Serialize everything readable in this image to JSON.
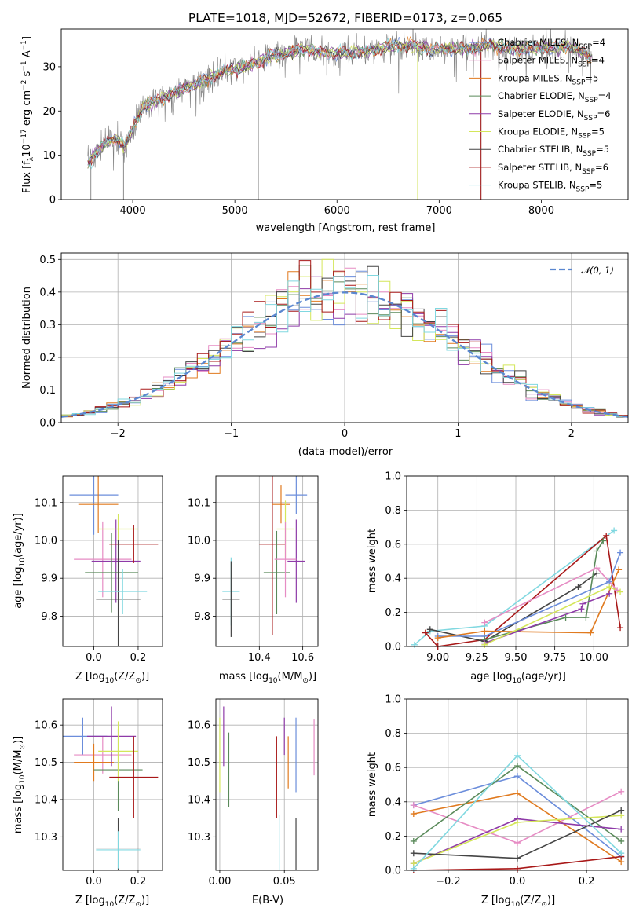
{
  "figure_title": "PLATE=1018, MJD=52672, FIBERID=0173, z=0.065",
  "colors": {
    "chabrier_miles": "#6b8ddb",
    "salpeter_miles": "#e68cc4",
    "kroupa_miles": "#e07a1f",
    "chabrier_elodie": "#5a8a5a",
    "salpeter_elodie": "#8e3aa8",
    "kroupa_elodie": "#d4e65a",
    "chabrier_stelib": "#444444",
    "salpeter_stelib": "#a81818",
    "kroupa_stelib": "#80d8e0"
  },
  "chart_data": [
    {
      "id": "spectrum",
      "type": "line",
      "title": "PLATE=1018, MJD=52672, FIBERID=0173, z=0.065",
      "xlabel": "wavelength [Angstrom, rest frame]",
      "ylabel": "Flux [f",
      "ylabel_sub": "λ",
      "ylabel_rest": "10",
      "ylabel_sup1": "−17",
      "ylabel_rest2": " erg cm",
      "ylabel_sup2": "−2",
      "ylabel_rest3": " s",
      "ylabel_sup3": "−1",
      "ylabel_rest4": " A",
      "ylabel_sup4": "−1",
      "ylabel_end": "]",
      "xlim": [
        3300,
        8850
      ],
      "ylim": [
        0,
        38.5
      ],
      "xticks": [
        4000,
        5000,
        6000,
        7000,
        8000
      ],
      "yticks": [
        0,
        10,
        20,
        30
      ],
      "legend_position": "upper-right",
      "legend": [
        {
          "base": "Chabrier MILES, N",
          "sub": "SSP",
          "end": "=4",
          "color": "#6b8ddb"
        },
        {
          "base": "Salpeter MILES, N",
          "sub": "SSP",
          "end": "=4",
          "color": "#e68cc4"
        },
        {
          "base": "Kroupa MILES, N",
          "sub": "SSP",
          "end": "=5",
          "color": "#e07a1f"
        },
        {
          "base": "Chabrier ELODIE, N",
          "sub": "SSP",
          "end": "=4",
          "color": "#5a8a5a"
        },
        {
          "base": "Salpeter ELODIE, N",
          "sub": "SSP",
          "end": "=6",
          "color": "#8e3aa8"
        },
        {
          "base": "Kroupa ELODIE, N",
          "sub": "SSP",
          "end": "=5",
          "color": "#d4e65a"
        },
        {
          "base": "Chabrier STELIB, N",
          "sub": "SSP",
          "end": "=5",
          "color": "#444444"
        },
        {
          "base": "Salpeter STELIB, N",
          "sub": "SSP",
          "end": "=6",
          "color": "#a81818"
        },
        {
          "base": "Kroupa STELIB, N",
          "sub": "SSP",
          "end": "=5",
          "color": "#80d8e0"
        }
      ],
      "continuum": [
        [
          3560,
          8
        ],
        [
          3650,
          11
        ],
        [
          3750,
          13
        ],
        [
          3850,
          14
        ],
        [
          3920,
          12
        ],
        [
          4000,
          16
        ],
        [
          4100,
          21
        ],
        [
          4300,
          23
        ],
        [
          4500,
          25
        ],
        [
          4700,
          27
        ],
        [
          4900,
          29
        ],
        [
          5100,
          30
        ],
        [
          5300,
          32
        ],
        [
          5500,
          33
        ],
        [
          5700,
          34
        ],
        [
          5900,
          33
        ],
        [
          6100,
          33
        ],
        [
          6300,
          33.5
        ],
        [
          6500,
          34.5
        ],
        [
          6700,
          35
        ],
        [
          6900,
          34
        ],
        [
          7100,
          34
        ],
        [
          7300,
          34
        ],
        [
          7500,
          35
        ],
        [
          7700,
          34
        ],
        [
          7900,
          34
        ],
        [
          8100,
          34.5
        ],
        [
          8300,
          34.5
        ],
        [
          8500,
          32
        ]
      ]
    },
    {
      "id": "residuals",
      "type": "histogram",
      "xlabel": "(data-model)/error",
      "ylabel": "Normed distribution",
      "xlim": [
        -2.5,
        2.5
      ],
      "ylim": [
        0,
        0.52
      ],
      "xticks": [
        -2,
        -1,
        0,
        1,
        2
      ],
      "xticklabels": [
        "−2",
        "−1",
        "0",
        "1",
        "2"
      ],
      "yticks": [
        0.0,
        0.1,
        0.2,
        0.3,
        0.4,
        0.5
      ],
      "yticklabels": [
        "0.0",
        "0.1",
        "0.2",
        "0.3",
        "0.4",
        "0.5"
      ],
      "grid": true,
      "legend": {
        "label": "𝒩(0, 1)",
        "color": "#5a87d0",
        "style": "dashed"
      },
      "bin_width": 0.1
    },
    {
      "id": "age_vs_Z",
      "type": "errorbar",
      "xlabel": "Z [log",
      "xlabel_sub": "10",
      "xlabel_rest": "(Z/Z",
      "xlabel_sub2": "⊙",
      "xlabel_end": ")]",
      "ylabel": "age  [log",
      "ylabel_sub": "10",
      "ylabel_end": "(age/yr)]",
      "xlim": [
        -0.14,
        0.31
      ],
      "ylim": [
        9.72,
        10.17
      ],
      "xticks": [
        0.0,
        0.2
      ],
      "xticklabels": [
        "0.0",
        "0.2"
      ],
      "yticks": [
        9.8,
        9.9,
        10.0,
        10.1
      ],
      "yticklabels": [
        "9.8",
        "9.9",
        "10.0",
        "10.1"
      ],
      "grid": true,
      "points": [
        {
          "x": 0.0,
          "xerr": 0.11,
          "y": 10.12,
          "yerr": 0.105,
          "color": "#6b8ddb"
        },
        {
          "x": 0.02,
          "xerr": 0.09,
          "y": 10.095,
          "yerr": 0.075,
          "color": "#e07a1f"
        },
        {
          "x": 0.04,
          "xerr": 0.13,
          "y": 9.95,
          "yerr": 0.1,
          "color": "#e68cc4"
        },
        {
          "x": 0.1,
          "xerr": 0.11,
          "y": 9.945,
          "yerr": 0.11,
          "color": "#8e3aa8"
        },
        {
          "x": 0.11,
          "xerr": 0.09,
          "y": 10.03,
          "yerr": 0.04,
          "color": "#d4e65a"
        },
        {
          "x": 0.08,
          "xerr": 0.12,
          "y": 9.915,
          "yerr": 0.105,
          "color": "#5a8a5a"
        },
        {
          "x": 0.18,
          "xerr": 0.11,
          "y": 9.99,
          "yerr": 0.05,
          "color": "#a81818"
        },
        {
          "x": 0.11,
          "xerr": 0.1,
          "y": 9.845,
          "yerr": 0.155,
          "color": "#444444"
        },
        {
          "x": 0.13,
          "xerr": 0.11,
          "y": 9.865,
          "yerr": 0.06,
          "color": "#80d8e0"
        }
      ]
    },
    {
      "id": "age_vs_mass",
      "type": "errorbar",
      "xlabel": "mass [log",
      "xlabel_sub": "10",
      "xlabel_rest": "(M/M",
      "xlabel_sub2": "⊙",
      "xlabel_end": ")]",
      "xlim": [
        10.2,
        10.67
      ],
      "ylim": [
        9.72,
        10.17
      ],
      "xticks": [
        10.4,
        10.6
      ],
      "xticklabels": [
        "10.4",
        "10.6"
      ],
      "yticks": [
        9.8,
        9.9,
        10.0,
        10.1
      ],
      "yticklabels": [
        "9.8",
        "9.9",
        "10.0",
        "10.1"
      ],
      "grid": true,
      "points": [
        {
          "x": 10.27,
          "xerr": 0.04,
          "y": 9.865,
          "yerr": 0.09,
          "color": "#80d8e0"
        },
        {
          "x": 10.27,
          "xerr": 0.04,
          "y": 9.845,
          "yerr": 0.1,
          "color": "#444444"
        },
        {
          "x": 10.46,
          "xerr": 0.06,
          "y": 9.99,
          "yerr": 0.24,
          "color": "#a81818"
        },
        {
          "x": 10.48,
          "xerr": 0.06,
          "y": 9.915,
          "yerr": 0.11,
          "color": "#5a8a5a"
        },
        {
          "x": 10.5,
          "xerr": 0.04,
          "y": 10.095,
          "yerr": 0.05,
          "color": "#e07a1f"
        },
        {
          "x": 10.52,
          "xerr": 0.04,
          "y": 10.03,
          "yerr": 0.075,
          "color": "#d4e65a"
        },
        {
          "x": 10.57,
          "xerr": 0.05,
          "y": 10.12,
          "yerr": 0.05,
          "color": "#6b8ddb"
        },
        {
          "x": 10.57,
          "xerr": 0.04,
          "y": 9.945,
          "yerr": 0.11,
          "color": "#8e3aa8"
        },
        {
          "x": 10.52,
          "xerr": 0.05,
          "y": 9.95,
          "yerr": 0.1,
          "color": "#e68cc4"
        }
      ]
    },
    {
      "id": "massweight_vs_age",
      "type": "line",
      "xlabel": "age  [log",
      "xlabel_sub": "10",
      "xlabel_end": "(age/yr)]",
      "ylabel": "mass weight",
      "xlim": [
        8.8,
        10.22
      ],
      "ylim": [
        0,
        1.0
      ],
      "xticks": [
        9.0,
        9.25,
        9.5,
        9.75,
        10.0
      ],
      "xticklabels": [
        "9.00",
        "9.25",
        "9.50",
        "9.75",
        "10.00"
      ],
      "yticks": [
        0.0,
        0.2,
        0.4,
        0.6,
        0.8,
        1.0
      ],
      "yticklabels": [
        "0.0",
        "0.2",
        "0.4",
        "0.6",
        "0.8",
        "1.0"
      ],
      "grid": true,
      "series": [
        {
          "color": "#80d8e0",
          "x": [
            8.85,
            8.95,
            9.3,
            10.13
          ],
          "y": [
            0.01,
            0.09,
            0.12,
            0.68
          ]
        },
        {
          "color": "#a81818",
          "x": [
            8.92,
            9.0,
            9.3,
            10.08,
            10.17
          ],
          "y": [
            0.08,
            0.0,
            0.04,
            0.65,
            0.11
          ]
        },
        {
          "color": "#444444",
          "x": [
            8.95,
            9.3,
            9.9,
            10.02
          ],
          "y": [
            0.1,
            0.03,
            0.35,
            0.43
          ]
        },
        {
          "color": "#6b8ddb",
          "x": [
            9.0,
            9.3,
            10.1,
            10.17
          ],
          "y": [
            0.06,
            0.06,
            0.38,
            0.55
          ]
        },
        {
          "color": "#e07a1f",
          "x": [
            9.0,
            9.3,
            9.98,
            10.16
          ],
          "y": [
            0.05,
            0.09,
            0.08,
            0.45
          ]
        },
        {
          "color": "#5a8a5a",
          "x": [
            9.3,
            9.82,
            9.95,
            10.02,
            10.06
          ],
          "y": [
            0.04,
            0.17,
            0.17,
            0.56,
            0.62
          ]
        },
        {
          "color": "#8e3aa8",
          "x": [
            9.3,
            9.92,
            9.93,
            10.1
          ],
          "y": [
            0.02,
            0.22,
            0.25,
            0.31
          ]
        },
        {
          "color": "#e68cc4",
          "x": [
            9.3,
            10.02,
            10.15
          ],
          "y": [
            0.14,
            0.46,
            0.33
          ]
        },
        {
          "color": "#d4e65a",
          "x": [
            9.3,
            10.1,
            10.17
          ],
          "y": [
            0.01,
            0.35,
            0.32
          ]
        }
      ]
    },
    {
      "id": "mass_vs_Z",
      "type": "errorbar",
      "xlabel": "Z [log",
      "xlabel_sub": "10",
      "xlabel_rest": "(Z/Z",
      "xlabel_sub2": "⊙",
      "xlabel_end": ")]",
      "ylabel": "mass [log",
      "ylabel_sub": "10",
      "ylabel_end": "(M/M",
      "ylabel_sub2": "⊙",
      "ylabel_end2": ")]",
      "xlim": [
        -0.14,
        0.31
      ],
      "ylim": [
        10.21,
        10.67
      ],
      "xticks": [
        0.0,
        0.2
      ],
      "xticklabels": [
        "0.0",
        "0.2"
      ],
      "yticks": [
        10.3,
        10.4,
        10.5,
        10.6
      ],
      "yticklabels": [
        "10.3",
        "10.4",
        "10.5",
        "10.6"
      ],
      "grid": true,
      "points": [
        {
          "x": -0.05,
          "xerr": 0.11,
          "y": 10.57,
          "yerr": 0.05,
          "color": "#6b8ddb"
        },
        {
          "x": 0.04,
          "xerr": 0.13,
          "y": 10.52,
          "yerr": 0.05,
          "color": "#e68cc4"
        },
        {
          "x": 0.0,
          "xerr": 0.09,
          "y": 10.5,
          "yerr": 0.05,
          "color": "#e07a1f"
        },
        {
          "x": 0.11,
          "xerr": 0.11,
          "y": 10.48,
          "yerr": 0.11,
          "color": "#5a8a5a"
        },
        {
          "x": 0.08,
          "xerr": 0.11,
          "y": 10.57,
          "yerr": 0.08,
          "color": "#8e3aa8"
        },
        {
          "x": 0.11,
          "xerr": 0.09,
          "y": 10.53,
          "yerr": 0.08,
          "color": "#d4e65a"
        },
        {
          "x": 0.18,
          "xerr": 0.11,
          "y": 10.46,
          "yerr": 0.11,
          "color": "#a81818"
        },
        {
          "x": 0.11,
          "xerr": 0.1,
          "y": 10.27,
          "yerr": 0.08,
          "color": "#444444"
        },
        {
          "x": 0.11,
          "xerr": 0.1,
          "y": 10.265,
          "yerr": 0.05,
          "color": "#80d8e0"
        }
      ]
    },
    {
      "id": "mass_vs_EBV",
      "type": "errorbar",
      "xlabel": "E(B-V)",
      "xlim": [
        -0.003,
        0.076
      ],
      "ylim": [
        10.21,
        10.67
      ],
      "xticks": [
        0.0,
        0.05
      ],
      "xticklabels": [
        "0.00",
        "0.05"
      ],
      "yticks": [
        10.3,
        10.4,
        10.5,
        10.6
      ],
      "yticklabels": [
        "10.3",
        "10.4",
        "10.5",
        "10.6"
      ],
      "grid": true,
      "points": [
        {
          "x": 0.0,
          "y": 10.52,
          "yerr": 0.1,
          "color": "#d4e65a"
        },
        {
          "x": 0.003,
          "y": 10.57,
          "yerr": 0.08,
          "color": "#8e3aa8"
        },
        {
          "x": 0.007,
          "y": 10.48,
          "yerr": 0.1,
          "color": "#5a8a5a"
        },
        {
          "x": 0.044,
          "y": 10.46,
          "yerr": 0.11,
          "color": "#a81818"
        },
        {
          "x": 0.046,
          "y": 10.27,
          "yerr": 0.09,
          "color": "#80d8e0"
        },
        {
          "x": 0.05,
          "y": 10.57,
          "yerr": 0.05,
          "color": "#8e3aa8"
        },
        {
          "x": 0.053,
          "y": 10.5,
          "yerr": 0.07,
          "color": "#e07a1f"
        },
        {
          "x": 0.059,
          "y": 10.27,
          "yerr": 0.08,
          "color": "#444444"
        },
        {
          "x": 0.059,
          "y": 10.52,
          "yerr": 0.1,
          "color": "#6b8ddb"
        },
        {
          "x": 0.073,
          "y": 10.54,
          "yerr": 0.075,
          "color": "#e68cc4"
        }
      ]
    },
    {
      "id": "massweight_vs_Z",
      "type": "line",
      "xlabel": "Z [log",
      "xlabel_sub": "10",
      "xlabel_rest": "(Z/Z",
      "xlabel_sub2": "⊙",
      "xlabel_end": ")]",
      "ylabel": "mass weight",
      "xlim": [
        -0.32,
        0.32
      ],
      "ylim": [
        0,
        1.0
      ],
      "xticks": [
        -0.2,
        0.0,
        0.2
      ],
      "xticklabels": [
        "−0.2",
        "0.0",
        "0.2"
      ],
      "yticks": [
        0.0,
        0.2,
        0.4,
        0.6,
        0.8,
        1.0
      ],
      "yticklabels": [
        "0.0",
        "0.2",
        "0.4",
        "0.6",
        "0.8",
        "1.0"
      ],
      "grid": true,
      "series": [
        {
          "color": "#6b8ddb",
          "x": [
            -0.3,
            0.0,
            0.3
          ],
          "y": [
            0.38,
            0.55,
            0.08
          ]
        },
        {
          "color": "#e68cc4",
          "x": [
            -0.3,
            0.0,
            0.3
          ],
          "y": [
            0.38,
            0.16,
            0.46
          ]
        },
        {
          "color": "#e07a1f",
          "x": [
            -0.3,
            0.0,
            0.3
          ],
          "y": [
            0.33,
            0.45,
            0.05
          ]
        },
        {
          "color": "#5a8a5a",
          "x": [
            -0.3,
            0.0,
            0.3
          ],
          "y": [
            0.17,
            0.61,
            0.17
          ]
        },
        {
          "color": "#8e3aa8",
          "x": [
            -0.3,
            0.0,
            0.3
          ],
          "y": [
            0.04,
            0.3,
            0.24
          ]
        },
        {
          "color": "#d4e65a",
          "x": [
            -0.3,
            0.0,
            0.3
          ],
          "y": [
            0.04,
            0.28,
            0.32
          ]
        },
        {
          "color": "#444444",
          "x": [
            -0.3,
            0.0,
            0.3
          ],
          "y": [
            0.1,
            0.07,
            0.35
          ]
        },
        {
          "color": "#a81818",
          "x": [
            -0.3,
            0.0,
            0.3
          ],
          "y": [
            0.0,
            0.01,
            0.08
          ]
        },
        {
          "color": "#80d8e0",
          "x": [
            -0.3,
            0.0,
            0.3
          ],
          "y": [
            0.01,
            0.67,
            0.1
          ]
        }
      ]
    }
  ]
}
